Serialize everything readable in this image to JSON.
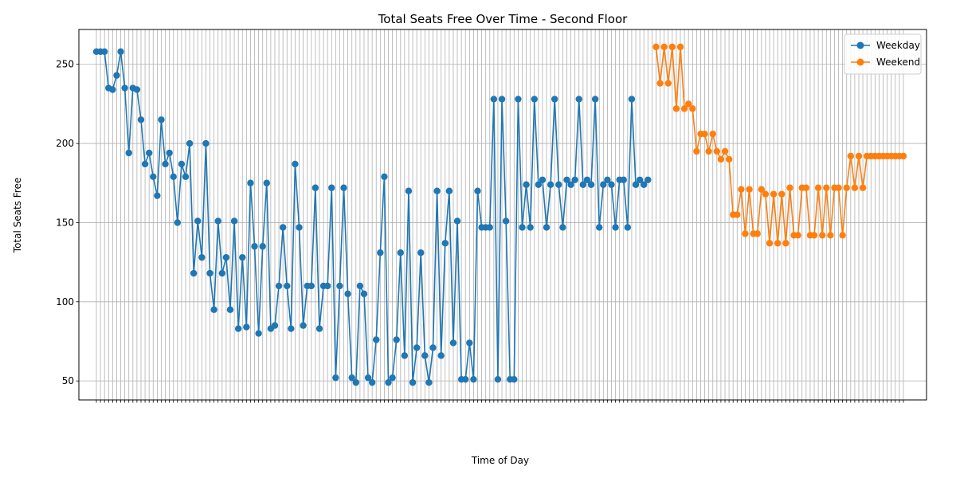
{
  "chart_data": {
    "type": "line",
    "title": "Total Seats Free Over Time - Second Floor",
    "xlabel": "Time of Day",
    "ylabel": "Total Seats Free",
    "ylim": [
      38,
      272
    ],
    "yticks": [
      50,
      100,
      150,
      200,
      250
    ],
    "grid": true,
    "legend_position": "top-right",
    "x_categories_count": 200,
    "series": [
      {
        "name": "Weekday",
        "color": "#1f77b4",
        "start_index": 0,
        "values": [
          258,
          258,
          258,
          235,
          234,
          243,
          258,
          235,
          194,
          235,
          234,
          215,
          187,
          194,
          179,
          167,
          215,
          187,
          194,
          179,
          150,
          187,
          179,
          200,
          118,
          151,
          128,
          200,
          118,
          95,
          151,
          118,
          128,
          95,
          151,
          83,
          128,
          84,
          175,
          135,
          80,
          135,
          175,
          83,
          85,
          110,
          147,
          110,
          83,
          187,
          147,
          85,
          110,
          110,
          172,
          83,
          110,
          110,
          172,
          52,
          110,
          172,
          105,
          52,
          49,
          110,
          105,
          52,
          49,
          76,
          131,
          179,
          49,
          52,
          76,
          131,
          66,
          170,
          49,
          71,
          131,
          66,
          49,
          71,
          170,
          66,
          137,
          170,
          74,
          151,
          51,
          51,
          74,
          51,
          170,
          147,
          147,
          147,
          228,
          51,
          228,
          151,
          51,
          51,
          228,
          147,
          174,
          147,
          228,
          174,
          177,
          147,
          174,
          228,
          174,
          147,
          177,
          174,
          177,
          228,
          174,
          177,
          174,
          228,
          147,
          174,
          177,
          174,
          147,
          177,
          177,
          147,
          228,
          174,
          177,
          174,
          177
        ]
      },
      {
        "name": "Weekend",
        "color": "#ff7f0e",
        "start_index": 138,
        "values": [
          261,
          238,
          261,
          238,
          261,
          222,
          261,
          222,
          225,
          222,
          195,
          206,
          206,
          195,
          206,
          195,
          190,
          195,
          190,
          155,
          155,
          171,
          143,
          171,
          143,
          143,
          171,
          168,
          137,
          168,
          137,
          168,
          137,
          172,
          142,
          142,
          172,
          172,
          142,
          142,
          172,
          142,
          172,
          142,
          172,
          172,
          142,
          172,
          192,
          172,
          192,
          172,
          192,
          192,
          192,
          192,
          192,
          192,
          192,
          192,
          192,
          192
        ]
      }
    ]
  }
}
